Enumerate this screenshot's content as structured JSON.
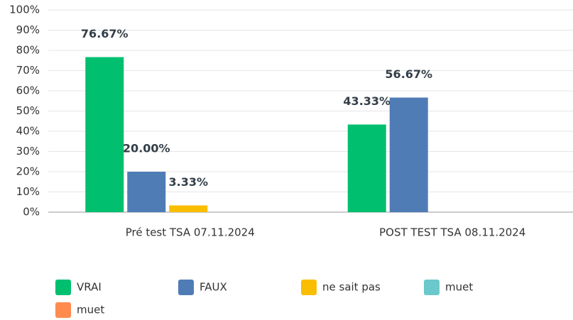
{
  "chart_data": {
    "type": "bar",
    "categories": [
      "Pré test TSA 07.11.2024",
      "POST TEST TSA 08.11.2024"
    ],
    "series": [
      {
        "name": "VRAI",
        "color": "#00bf6f",
        "values": [
          76.67,
          43.33
        ],
        "value_labels": [
          "76.67%",
          "43.33%"
        ]
      },
      {
        "name": "FAUX",
        "color": "#507cb6",
        "values": [
          20.0,
          56.67
        ],
        "value_labels": [
          "20.00%",
          "56.67%"
        ]
      },
      {
        "name": "ne sait pas",
        "color": "#f9be00",
        "values": [
          3.33,
          null
        ],
        "value_labels": [
          "3.33%",
          null
        ]
      },
      {
        "name": "muet",
        "color": "#6bc8cd",
        "values": [
          null,
          null
        ],
        "value_labels": [
          null,
          null
        ]
      },
      {
        "name": "muet",
        "color": "#ff8b4f",
        "values": [
          null,
          null
        ],
        "value_labels": [
          null,
          null
        ]
      }
    ],
    "ylim": [
      0,
      100
    ],
    "yticks": [
      {
        "value": 0,
        "label": "0%"
      },
      {
        "value": 10,
        "label": "10%"
      },
      {
        "value": 20,
        "label": "20%"
      },
      {
        "value": 30,
        "label": "30%"
      },
      {
        "value": 40,
        "label": "40%"
      },
      {
        "value": 50,
        "label": "50%"
      },
      {
        "value": 60,
        "label": "60%"
      },
      {
        "value": 70,
        "label": "70%"
      },
      {
        "value": 80,
        "label": "80%"
      },
      {
        "value": 90,
        "label": "90%"
      },
      {
        "value": 100,
        "label": "100%"
      }
    ],
    "grid": true,
    "legend": "bottom"
  }
}
